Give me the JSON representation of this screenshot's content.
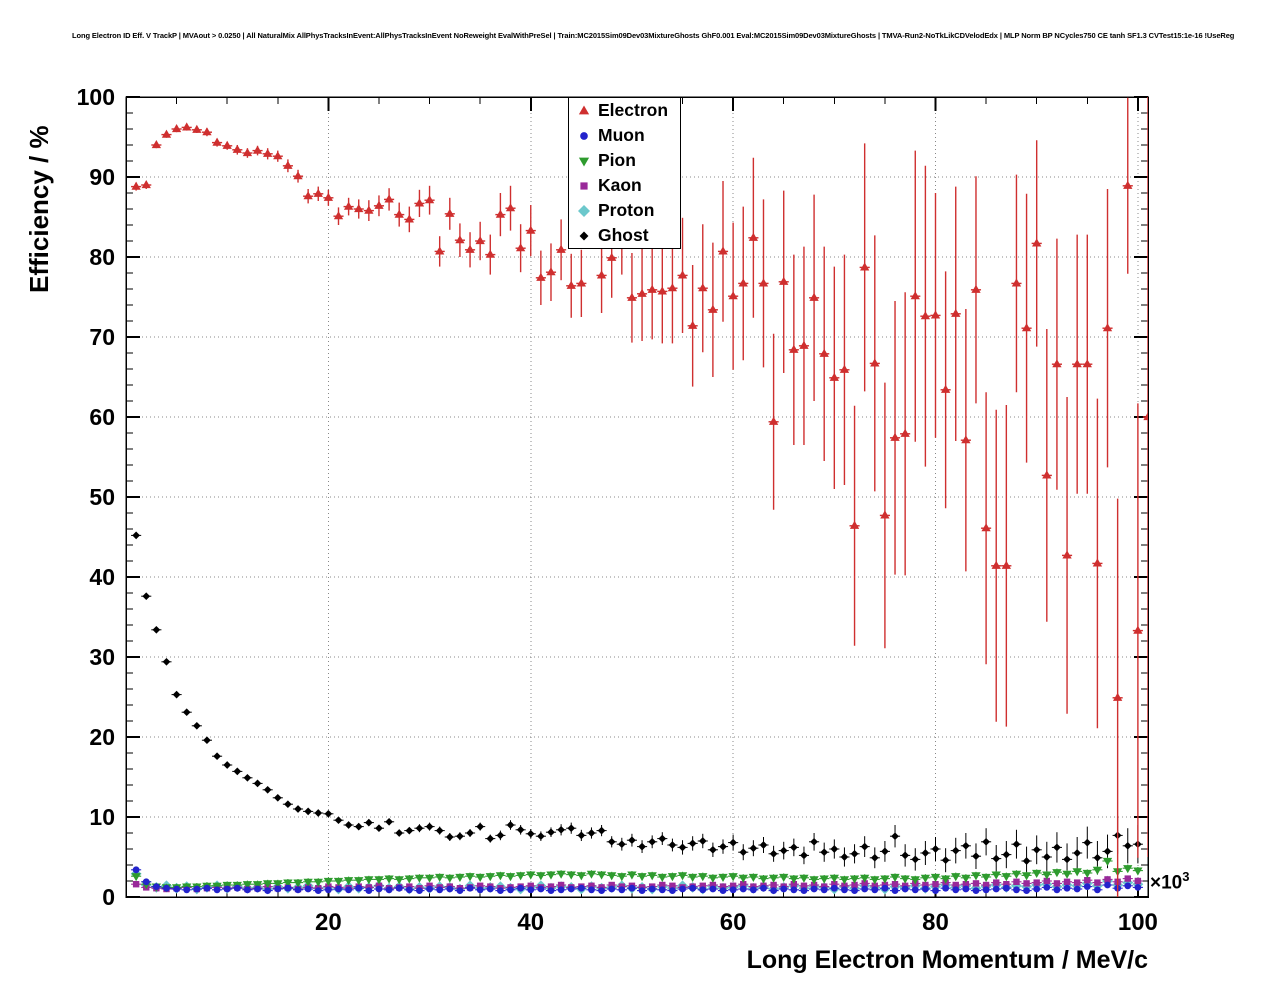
{
  "chart_data": {
    "type": "scatter",
    "title": "Long Electron ID Eff. V TrackP | MVAout > 0.0250 | All NaturalMix AllPhysTracksInEvent:AllPhysTracksInEvent NoReweight EvalWithPreSel | Train:MC2015Sim09Dev03MixtureGhosts GhF0.001 Eval:MC2015Sim09Dev03MixtureGhosts | TMVA-Run2-NoTkLikCDVelodEdx | MLP Norm BP NCycles750 CE tanh SF1.3 CVTest15:1e-16 !UseReg",
    "xlabel": "Long Electron Momentum / MeV/c",
    "ylabel": "Efficiency / %",
    "xlim": [
      0,
      101000
    ],
    "ylim": [
      0,
      100
    ],
    "grid": true,
    "legend_position": "top-center",
    "x_axis": {
      "major_ticks": [
        20000,
        40000,
        60000,
        80000,
        100000
      ],
      "tick_labels": [
        "20",
        "40",
        "60",
        "80",
        "100"
      ],
      "minor_step": 5000,
      "exponent_prefix": "×10",
      "exponent_power": "3"
    },
    "y_axis": {
      "major_ticks": [
        0,
        10,
        20,
        30,
        40,
        50,
        60,
        70,
        80,
        90,
        100
      ],
      "tick_labels": [
        "0",
        "10",
        "20",
        "30",
        "40",
        "50",
        "60",
        "70",
        "80",
        "90",
        "100"
      ],
      "minor_step": 2
    },
    "series": [
      {
        "name": "Electron",
        "marker": "triangle-up",
        "color": "#cf2f2f",
        "size": 5,
        "line_width": 1.4,
        "x_start": 1000,
        "x_step": 1000,
        "xerr": 500,
        "y": [
          88.8,
          89.0,
          94.0,
          95.3,
          96.0,
          96.2,
          95.9,
          95.6,
          94.3,
          93.9,
          93.4,
          93.0,
          93.3,
          92.9,
          92.6,
          91.4,
          90.1,
          87.6,
          87.9,
          87.4,
          85.1,
          86.3,
          86.0,
          85.8,
          86.4,
          87.2,
          85.3,
          84.7,
          86.7,
          87.1,
          80.7,
          85.4,
          82.1,
          80.9,
          82.0,
          80.3,
          85.3,
          86.1,
          81.1,
          83.3,
          77.4,
          78.1,
          80.9,
          76.4,
          76.7,
          85.7,
          77.7,
          79.9,
          83.1,
          74.9,
          75.4,
          75.9,
          75.7,
          76.1,
          77.7,
          71.4,
          76.1,
          73.4,
          80.7,
          75.1,
          76.7,
          82.4,
          76.7,
          59.4,
          76.9,
          68.4,
          68.9,
          74.9,
          67.9,
          64.9,
          65.9,
          46.4,
          78.7,
          66.7,
          47.7,
          57.4,
          57.9,
          75.1,
          72.6,
          72.7,
          63.4,
          72.9,
          57.1,
          75.9,
          46.1,
          41.4,
          41.4,
          76.7,
          71.1,
          81.7,
          52.7,
          66.6,
          42.7,
          66.6,
          66.6,
          41.7,
          71.1,
          24.9,
          88.9,
          33.3,
          60.0
        ],
        "yerr": [
          0.5,
          0.5,
          0.4,
          0.4,
          0.4,
          0.4,
          0.4,
          0.5,
          0.5,
          0.5,
          0.6,
          0.6,
          0.6,
          0.7,
          0.7,
          0.8,
          0.8,
          0.9,
          0.9,
          1.0,
          1.1,
          1.1,
          1.2,
          1.3,
          1.3,
          1.4,
          1.5,
          1.6,
          1.7,
          1.8,
          1.9,
          2.0,
          2.1,
          2.2,
          2.4,
          2.5,
          2.7,
          2.8,
          3.0,
          3.2,
          3.4,
          3.6,
          3.8,
          4.0,
          4.2,
          4.5,
          4.7,
          5.0,
          5.3,
          5.6,
          5.9,
          6.2,
          6.5,
          6.9,
          7.2,
          7.6,
          8.0,
          8.4,
          8.8,
          9.2,
          9.6,
          10.0,
          10.5,
          11.0,
          11.4,
          11.9,
          12.4,
          12.9,
          13.4,
          13.9,
          14.4,
          15.0,
          15.5,
          16.0,
          16.6,
          17.1,
          17.7,
          18.2,
          18.8,
          15.3,
          14.8,
          15.9,
          16.4,
          14.2,
          17.0,
          19.5,
          20.1,
          13.6,
          16.8,
          12.9,
          18.3,
          15.7,
          19.8,
          16.2,
          16.2,
          20.6,
          17.4,
          24.9,
          11.0,
          28.4,
          55.0
        ]
      },
      {
        "name": "Muon",
        "marker": "circle",
        "color": "#2323cc",
        "size": 4,
        "line_width": 1.1,
        "x_start": 1000,
        "x_step": 1000,
        "xerr": 500,
        "y": [
          3.4,
          1.9,
          1.3,
          1.1,
          1.0,
          0.9,
          1.0,
          1.1,
          0.9,
          1.0,
          1.1,
          0.9,
          1.0,
          0.8,
          1.0,
          1.1,
          0.9,
          1.0,
          0.8,
          0.9,
          1.0,
          0.9,
          1.1,
          0.8,
          1.0,
          0.9,
          1.1,
          0.9,
          0.8,
          1.0,
          0.9,
          1.0,
          0.8,
          1.1,
          0.9,
          1.0,
          0.8,
          0.9,
          1.1,
          0.9,
          1.0,
          0.8,
          0.9,
          1.0,
          1.1,
          0.9,
          0.8,
          1.0,
          0.9,
          1.1,
          0.8,
          1.0,
          0.9,
          0.8,
          1.0,
          1.1,
          0.9,
          1.0,
          0.8,
          0.9,
          1.0,
          0.9,
          1.1,
          0.8,
          1.0,
          0.9,
          0.8,
          1.0,
          0.9,
          1.1,
          0.9,
          0.8,
          1.0,
          0.9,
          1.1,
          0.8,
          1.0,
          0.9,
          1.0,
          0.8,
          1.1,
          0.9,
          1.0,
          0.8,
          0.9,
          1.0,
          1.1,
          0.9,
          0.8,
          1.0,
          1.2,
          0.9,
          1.1,
          1.0,
          1.3,
          0.9,
          1.5,
          1.1,
          1.4,
          1.2
        ],
        "yerr": 0.3
      },
      {
        "name": "Pion",
        "marker": "triangle-down",
        "color": "#2e9b2e",
        "size": 5,
        "line_width": 1.1,
        "x_start": 1000,
        "x_step": 1000,
        "xerr": 500,
        "y": [
          2.6,
          1.6,
          1.3,
          1.2,
          1.2,
          1.3,
          1.3,
          1.4,
          1.4,
          1.5,
          1.5,
          1.6,
          1.6,
          1.7,
          1.7,
          1.8,
          1.8,
          1.9,
          1.9,
          2.0,
          2.0,
          2.1,
          2.1,
          2.2,
          2.2,
          2.3,
          2.2,
          2.3,
          2.4,
          2.4,
          2.5,
          2.4,
          2.5,
          2.6,
          2.5,
          2.6,
          2.7,
          2.6,
          2.7,
          2.8,
          2.7,
          2.8,
          2.9,
          2.8,
          2.7,
          2.9,
          2.8,
          2.7,
          2.6,
          2.8,
          2.6,
          2.7,
          2.5,
          2.6,
          2.7,
          2.5,
          2.6,
          2.4,
          2.5,
          2.6,
          2.4,
          2.5,
          2.3,
          2.4,
          2.5,
          2.3,
          2.4,
          2.2,
          2.3,
          2.4,
          2.2,
          2.3,
          2.4,
          2.2,
          2.3,
          2.5,
          2.3,
          2.2,
          2.4,
          2.5,
          2.3,
          2.6,
          2.4,
          2.7,
          2.5,
          2.8,
          2.6,
          2.9,
          2.7,
          3.0,
          2.8,
          3.1,
          2.9,
          3.2,
          3.0,
          3.4,
          4.5,
          3.2,
          3.6,
          3.3
        ],
        "yerr": 0.45
      },
      {
        "name": "Kaon",
        "marker": "square",
        "color": "#992999",
        "size": 4,
        "line_width": 1.1,
        "x_start": 1000,
        "x_step": 1000,
        "xerr": 500,
        "y": [
          1.6,
          1.2,
          1.1,
          1.0,
          1.1,
          1.2,
          1.0,
          1.1,
          1.2,
          1.1,
          1.2,
          1.0,
          1.1,
          1.3,
          1.1,
          1.2,
          1.0,
          1.2,
          1.1,
          1.3,
          1.2,
          1.1,
          1.3,
          1.2,
          1.4,
          1.1,
          1.2,
          1.3,
          1.1,
          1.4,
          1.2,
          1.3,
          1.1,
          1.2,
          1.4,
          1.3,
          1.1,
          1.2,
          1.3,
          1.4,
          1.2,
          1.3,
          1.5,
          1.2,
          1.3,
          1.4,
          1.2,
          1.5,
          1.3,
          1.4,
          1.2,
          1.3,
          1.5,
          1.4,
          1.2,
          1.3,
          1.4,
          1.5,
          1.3,
          1.4,
          1.6,
          1.3,
          1.4,
          1.5,
          1.3,
          1.6,
          1.4,
          1.5,
          1.3,
          1.6,
          1.4,
          1.5,
          1.7,
          1.4,
          1.5,
          1.6,
          1.4,
          1.7,
          1.5,
          1.6,
          1.8,
          1.5,
          1.6,
          1.7,
          1.5,
          1.8,
          1.6,
          1.9,
          1.7,
          1.8,
          2.0,
          1.7,
          1.9,
          1.8,
          2.1,
          1.8,
          2.2,
          1.9,
          2.3,
          2.0
        ],
        "yerr": 0.35
      },
      {
        "name": "Proton",
        "marker": "diamond",
        "color": "#6cc8cc",
        "size": 4.5,
        "line_width": 1.1,
        "x_start": 1000,
        "x_step": 1000,
        "xerr": 500,
        "y": [
          2.9,
          1.5,
          1.2,
          1.4,
          1.1,
          1.3,
          1.0,
          1.2,
          1.4,
          1.1,
          1.3,
          1.1,
          1.2,
          1.0,
          1.3,
          1.1,
          1.2,
          1.4,
          1.1,
          1.2,
          1.0,
          1.3,
          1.1,
          1.2,
          1.4,
          1.1,
          1.3,
          1.0,
          1.2,
          1.1,
          1.3,
          1.2,
          1.0,
          1.4,
          1.1,
          1.2,
          1.3,
          1.1,
          1.0,
          1.2,
          1.4,
          1.1,
          1.3,
          1.2,
          1.0,
          1.3,
          1.1,
          1.2,
          1.4,
          1.1,
          1.2,
          1.0,
          1.3,
          1.1,
          1.4,
          1.2,
          1.0,
          1.3,
          1.1,
          1.2,
          1.4,
          1.1,
          1.3,
          1.0,
          1.2,
          1.4,
          1.1,
          1.3,
          1.2,
          1.0,
          1.3,
          1.1,
          1.4,
          1.2,
          1.0,
          1.3,
          1.2,
          1.4,
          1.1,
          1.3,
          1.5,
          1.2,
          1.4,
          1.1,
          1.3,
          1.5,
          1.2,
          1.4,
          1.3,
          1.5,
          1.6,
          1.3,
          1.5,
          1.4,
          1.7,
          1.4,
          2.0,
          1.5,
          1.8,
          1.6
        ],
        "yerr": 0.35
      },
      {
        "name": "Ghost",
        "marker": "diamond",
        "color": "#000000",
        "size": 3.2,
        "line_width": 1,
        "x_start": 1000,
        "x_step": 1000,
        "xerr": 500,
        "y": [
          45.2,
          37.6,
          33.4,
          29.4,
          25.3,
          23.1,
          21.4,
          19.6,
          17.6,
          16.5,
          15.7,
          14.9,
          14.2,
          13.4,
          12.4,
          11.6,
          11.0,
          10.7,
          10.5,
          10.4,
          9.6,
          9.0,
          8.8,
          9.3,
          8.6,
          9.4,
          8.0,
          8.3,
          8.6,
          8.8,
          8.3,
          7.5,
          7.6,
          8.0,
          8.8,
          7.3,
          7.7,
          9.0,
          8.4,
          7.9,
          7.6,
          8.1,
          8.4,
          8.6,
          7.7,
          8.0,
          8.3,
          6.9,
          6.6,
          7.1,
          6.3,
          6.9,
          7.3,
          6.5,
          6.2,
          6.7,
          7.0,
          5.9,
          6.3,
          6.8,
          5.6,
          6.1,
          6.5,
          5.4,
          5.8,
          6.2,
          5.2,
          6.9,
          5.6,
          6.0,
          5.0,
          5.4,
          6.3,
          4.9,
          5.7,
          7.6,
          5.2,
          4.7,
          5.5,
          6.0,
          4.6,
          5.8,
          6.4,
          5.1,
          6.9,
          4.8,
          5.3,
          6.6,
          4.5,
          5.9,
          5.0,
          6.2,
          4.7,
          5.5,
          6.8,
          4.9,
          5.7,
          7.7,
          6.4,
          6.6
        ],
        "yerr": [
          0.4,
          0.4,
          0.4,
          0.4,
          0.3,
          0.3,
          0.3,
          0.3,
          0.3,
          0.3,
          0.3,
          0.3,
          0.3,
          0.3,
          0.3,
          0.3,
          0.3,
          0.3,
          0.3,
          0.4,
          0.4,
          0.4,
          0.4,
          0.4,
          0.4,
          0.4,
          0.4,
          0.4,
          0.5,
          0.5,
          0.5,
          0.5,
          0.5,
          0.5,
          0.5,
          0.5,
          0.6,
          0.6,
          0.6,
          0.6,
          0.6,
          0.6,
          0.7,
          0.7,
          0.7,
          0.7,
          0.7,
          0.7,
          0.8,
          0.8,
          0.8,
          0.8,
          0.8,
          0.8,
          0.9,
          0.9,
          0.9,
          0.9,
          0.9,
          1.0,
          1.0,
          1.0,
          1.0,
          1.0,
          1.1,
          1.1,
          1.1,
          1.1,
          1.2,
          1.2,
          1.2,
          1.2,
          1.3,
          1.3,
          1.3,
          1.4,
          1.4,
          1.4,
          1.5,
          1.5,
          1.5,
          1.6,
          1.6,
          1.6,
          1.7,
          1.7,
          1.7,
          1.8,
          1.8,
          1.8,
          1.9,
          1.9,
          2.0,
          2.0,
          2.0,
          2.1,
          2.1,
          2.3,
          2.2,
          2.4
        ]
      }
    ]
  }
}
